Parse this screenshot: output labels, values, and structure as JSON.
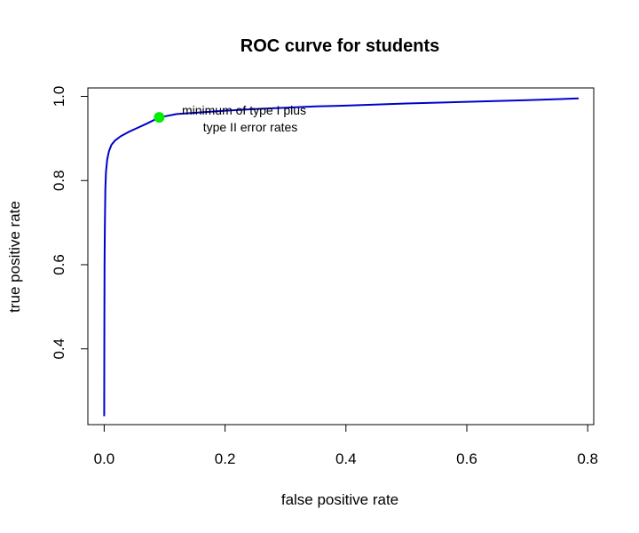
{
  "chart_data": {
    "type": "line",
    "title": "ROC curve for students",
    "xlabel": "false positive rate",
    "ylabel": "true positive rate",
    "xlim": [
      -0.027,
      0.81
    ],
    "ylim": [
      0.22,
      1.02
    ],
    "xticks": [
      "0.0",
      "0.2",
      "0.4",
      "0.6",
      "0.8"
    ],
    "yticks": [
      "0.4",
      "0.6",
      "0.8",
      "1.0"
    ],
    "grid": false,
    "series": [
      {
        "color": "#0000cc",
        "x": [
          0.0,
          0.0003,
          0.0006,
          0.001,
          0.002,
          0.003,
          0.005,
          0.008,
          0.012,
          0.018,
          0.027,
          0.04,
          0.055,
          0.07,
          0.091,
          0.12,
          0.16,
          0.2,
          0.25,
          0.3,
          0.35,
          0.4,
          0.5,
          0.6,
          0.7,
          0.785
        ],
        "y": [
          0.24,
          0.45,
          0.6,
          0.68,
          0.78,
          0.82,
          0.85,
          0.87,
          0.885,
          0.895,
          0.905,
          0.915,
          0.925,
          0.935,
          0.95,
          0.958,
          0.962,
          0.966,
          0.97,
          0.973,
          0.976,
          0.978,
          0.983,
          0.987,
          0.991,
          0.995
        ]
      }
    ],
    "marker": {
      "x": 0.091,
      "y": 0.95,
      "color": "#00ee00",
      "label_line1": "minimum of type I plus",
      "label_line2": "type II error rates"
    }
  }
}
